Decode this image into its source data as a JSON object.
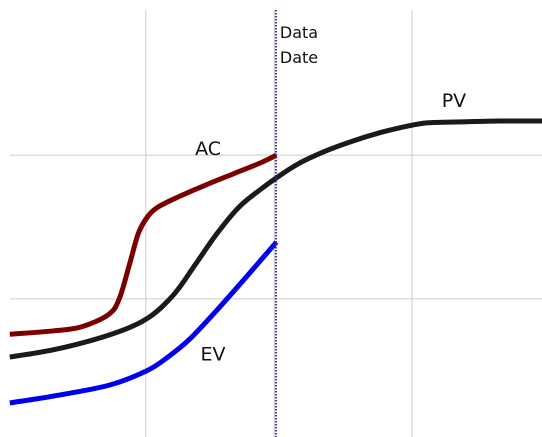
{
  "chart_data": {
    "type": "line",
    "title": "",
    "xlabel": "",
    "ylabel": "",
    "grid": true,
    "xlim": [
      0,
      100
    ],
    "ylim": [
      0,
      100
    ],
    "x_gridlines": [
      26.9,
      50.6,
      76.0
    ],
    "y_gridlines": [
      31.6,
      64.5
    ],
    "data_date": {
      "x": 50.9,
      "label_line1": "Data",
      "label_line2": "Date",
      "color": "#333399"
    },
    "series": [
      {
        "name": "PV",
        "color": "#1a1a1a",
        "points": [
          [
            1.8,
            18.3
          ],
          [
            10,
            20
          ],
          [
            20,
            23.3
          ],
          [
            27,
            27
          ],
          [
            32,
            32.5
          ],
          [
            36,
            39.4
          ],
          [
            40,
            46.5
          ],
          [
            44,
            52.5
          ],
          [
            48,
            56.6
          ],
          [
            51,
            59.3
          ],
          [
            55,
            62.5
          ],
          [
            60,
            65.4
          ],
          [
            65,
            67.7
          ],
          [
            70,
            69.6
          ],
          [
            75,
            71.1
          ],
          [
            79,
            71.9
          ],
          [
            85,
            72.1
          ],
          [
            92,
            72.3
          ],
          [
            100,
            72.3
          ]
        ]
      },
      {
        "name": "AC",
        "color": "#7a0000",
        "points": [
          [
            1.8,
            23.5
          ],
          [
            10,
            24.3
          ],
          [
            15,
            25.2
          ],
          [
            20,
            28
          ],
          [
            22,
            31.6
          ],
          [
            24,
            40
          ],
          [
            25.5,
            46.5
          ],
          [
            27,
            50
          ],
          [
            29,
            52.5
          ],
          [
            33,
            55
          ],
          [
            38,
            57.7
          ],
          [
            43,
            60.2
          ],
          [
            48,
            62.7
          ],
          [
            51,
            64.5
          ]
        ]
      },
      {
        "name": "EV",
        "color": "#0000ee",
        "points": [
          [
            1.8,
            7.8
          ],
          [
            10,
            9.4
          ],
          [
            20,
            11.8
          ],
          [
            27,
            15.1
          ],
          [
            31,
            18.3
          ],
          [
            35,
            22.4
          ],
          [
            40,
            29
          ],
          [
            45,
            36
          ],
          [
            48,
            40.3
          ],
          [
            51,
            44.6
          ]
        ]
      }
    ],
    "labels": [
      {
        "text": "PV",
        "x": 81.5,
        "y": 75.5
      },
      {
        "text": "AC",
        "x": 36,
        "y": 64.5
      },
      {
        "text": "EV",
        "x": 37,
        "y": 17.5
      }
    ]
  }
}
